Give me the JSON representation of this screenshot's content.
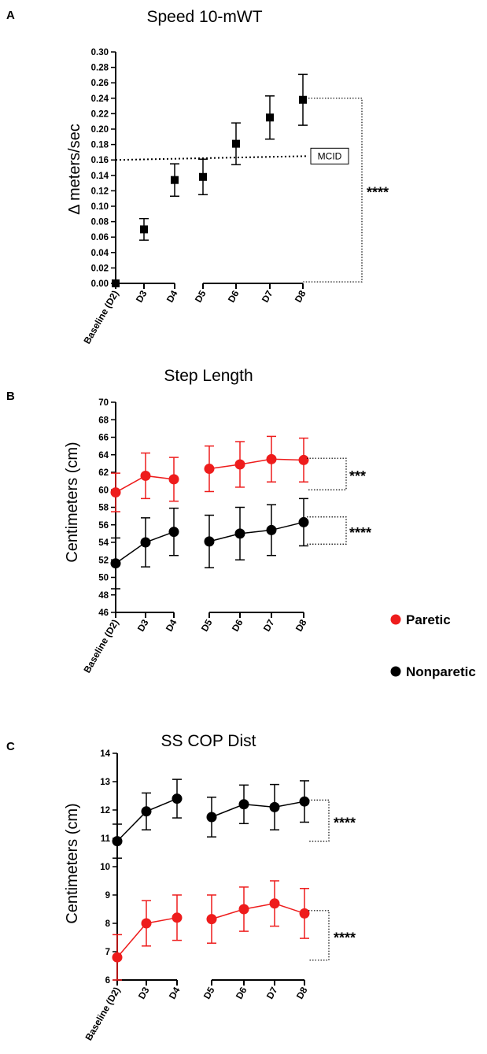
{
  "chart_data": [
    {
      "panel": "A",
      "type": "scatter",
      "title": "Speed 10-mWT",
      "ylabel": "Δ meters/sec",
      "xlabel": "",
      "categories": [
        "Baseline (D2)",
        "D3",
        "D4",
        "D5",
        "D6",
        "D7",
        "D8"
      ],
      "ylim": [
        0,
        0.3
      ],
      "yticks": [
        "0.00",
        "0.02",
        "0.04",
        "0.06",
        "0.08",
        "0.10",
        "0.12",
        "0.14",
        "0.16",
        "0.18",
        "0.20",
        "0.22",
        "0.24",
        "0.26",
        "0.28",
        "0.30"
      ],
      "series": [
        {
          "name": "Speed",
          "color": "#000000",
          "marker": "square",
          "values": [
            0.0,
            0.07,
            0.134,
            0.138,
            0.181,
            0.215,
            0.238
          ],
          "err": [
            0.0,
            0.014,
            0.021,
            0.023,
            0.027,
            0.028,
            0.033
          ]
        }
      ],
      "reference_line": {
        "label": "MCID",
        "y_start": 0.16,
        "y_end": 0.165
      },
      "significance": [
        {
          "label": "****",
          "from_y": 0.24,
          "to_y": 0.002
        }
      ]
    },
    {
      "panel": "B",
      "type": "line",
      "title": "Step Length",
      "ylabel": "Centimeters (cm)",
      "xlabel": "",
      "categories": [
        "Baseline (D2)",
        "D3",
        "D4",
        "D5",
        "D6",
        "D7",
        "D8"
      ],
      "ylim": [
        46,
        70
      ],
      "yticks": [
        "46",
        "48",
        "50",
        "52",
        "54",
        "56",
        "58",
        "60",
        "62",
        "64",
        "66",
        "68",
        "70"
      ],
      "series": [
        {
          "name": "Paretic",
          "color": "#ee1c1c",
          "values": [
            59.7,
            61.6,
            61.2,
            62.4,
            62.9,
            63.5,
            63.4
          ],
          "err": [
            2.2,
            2.6,
            2.5,
            2.6,
            2.6,
            2.6,
            2.5
          ]
        },
        {
          "name": "Nonparetic",
          "color": "#000000",
          "values": [
            51.6,
            54.0,
            55.2,
            54.1,
            55.0,
            55.4,
            56.3
          ],
          "err": [
            2.9,
            2.8,
            2.7,
            3.0,
            3.0,
            2.9,
            2.7
          ]
        }
      ],
      "significance": [
        {
          "label": "***",
          "from_y": 63.6,
          "to_y": 60.0
        },
        {
          "label": "****",
          "from_y": 56.9,
          "to_y": 53.8
        }
      ]
    },
    {
      "panel": "C",
      "type": "line",
      "title": "SS COP Dist",
      "ylabel": "Centimeters (cm)",
      "xlabel": "",
      "categories": [
        "Baseline (D2)",
        "D3",
        "D4",
        "D5",
        "D6",
        "D7",
        "D8"
      ],
      "ylim": [
        6,
        14
      ],
      "yticks": [
        "6",
        "7",
        "8",
        "9",
        "10",
        "11",
        "12",
        "13",
        "14"
      ],
      "series": [
        {
          "name": "Nonparetic",
          "color": "#000000",
          "values": [
            10.9,
            11.95,
            12.4,
            11.75,
            12.2,
            12.1,
            12.3
          ],
          "err": [
            0.6,
            0.65,
            0.68,
            0.7,
            0.68,
            0.8,
            0.73
          ]
        },
        {
          "name": "Paretic",
          "color": "#ee1c1c",
          "values": [
            6.8,
            8.0,
            8.2,
            8.15,
            8.5,
            8.7,
            8.35
          ],
          "err": [
            0.8,
            0.8,
            0.8,
            0.85,
            0.78,
            0.8,
            0.88
          ]
        }
      ],
      "significance": [
        {
          "label": "****",
          "from_y": 12.35,
          "to_y": 10.9
        },
        {
          "label": "****",
          "from_y": 8.45,
          "to_y": 6.7
        }
      ]
    }
  ],
  "legend": [
    {
      "name": "Paretic",
      "color": "#ee1c1c"
    },
    {
      "name": "Nonparetic",
      "color": "#000000"
    }
  ]
}
